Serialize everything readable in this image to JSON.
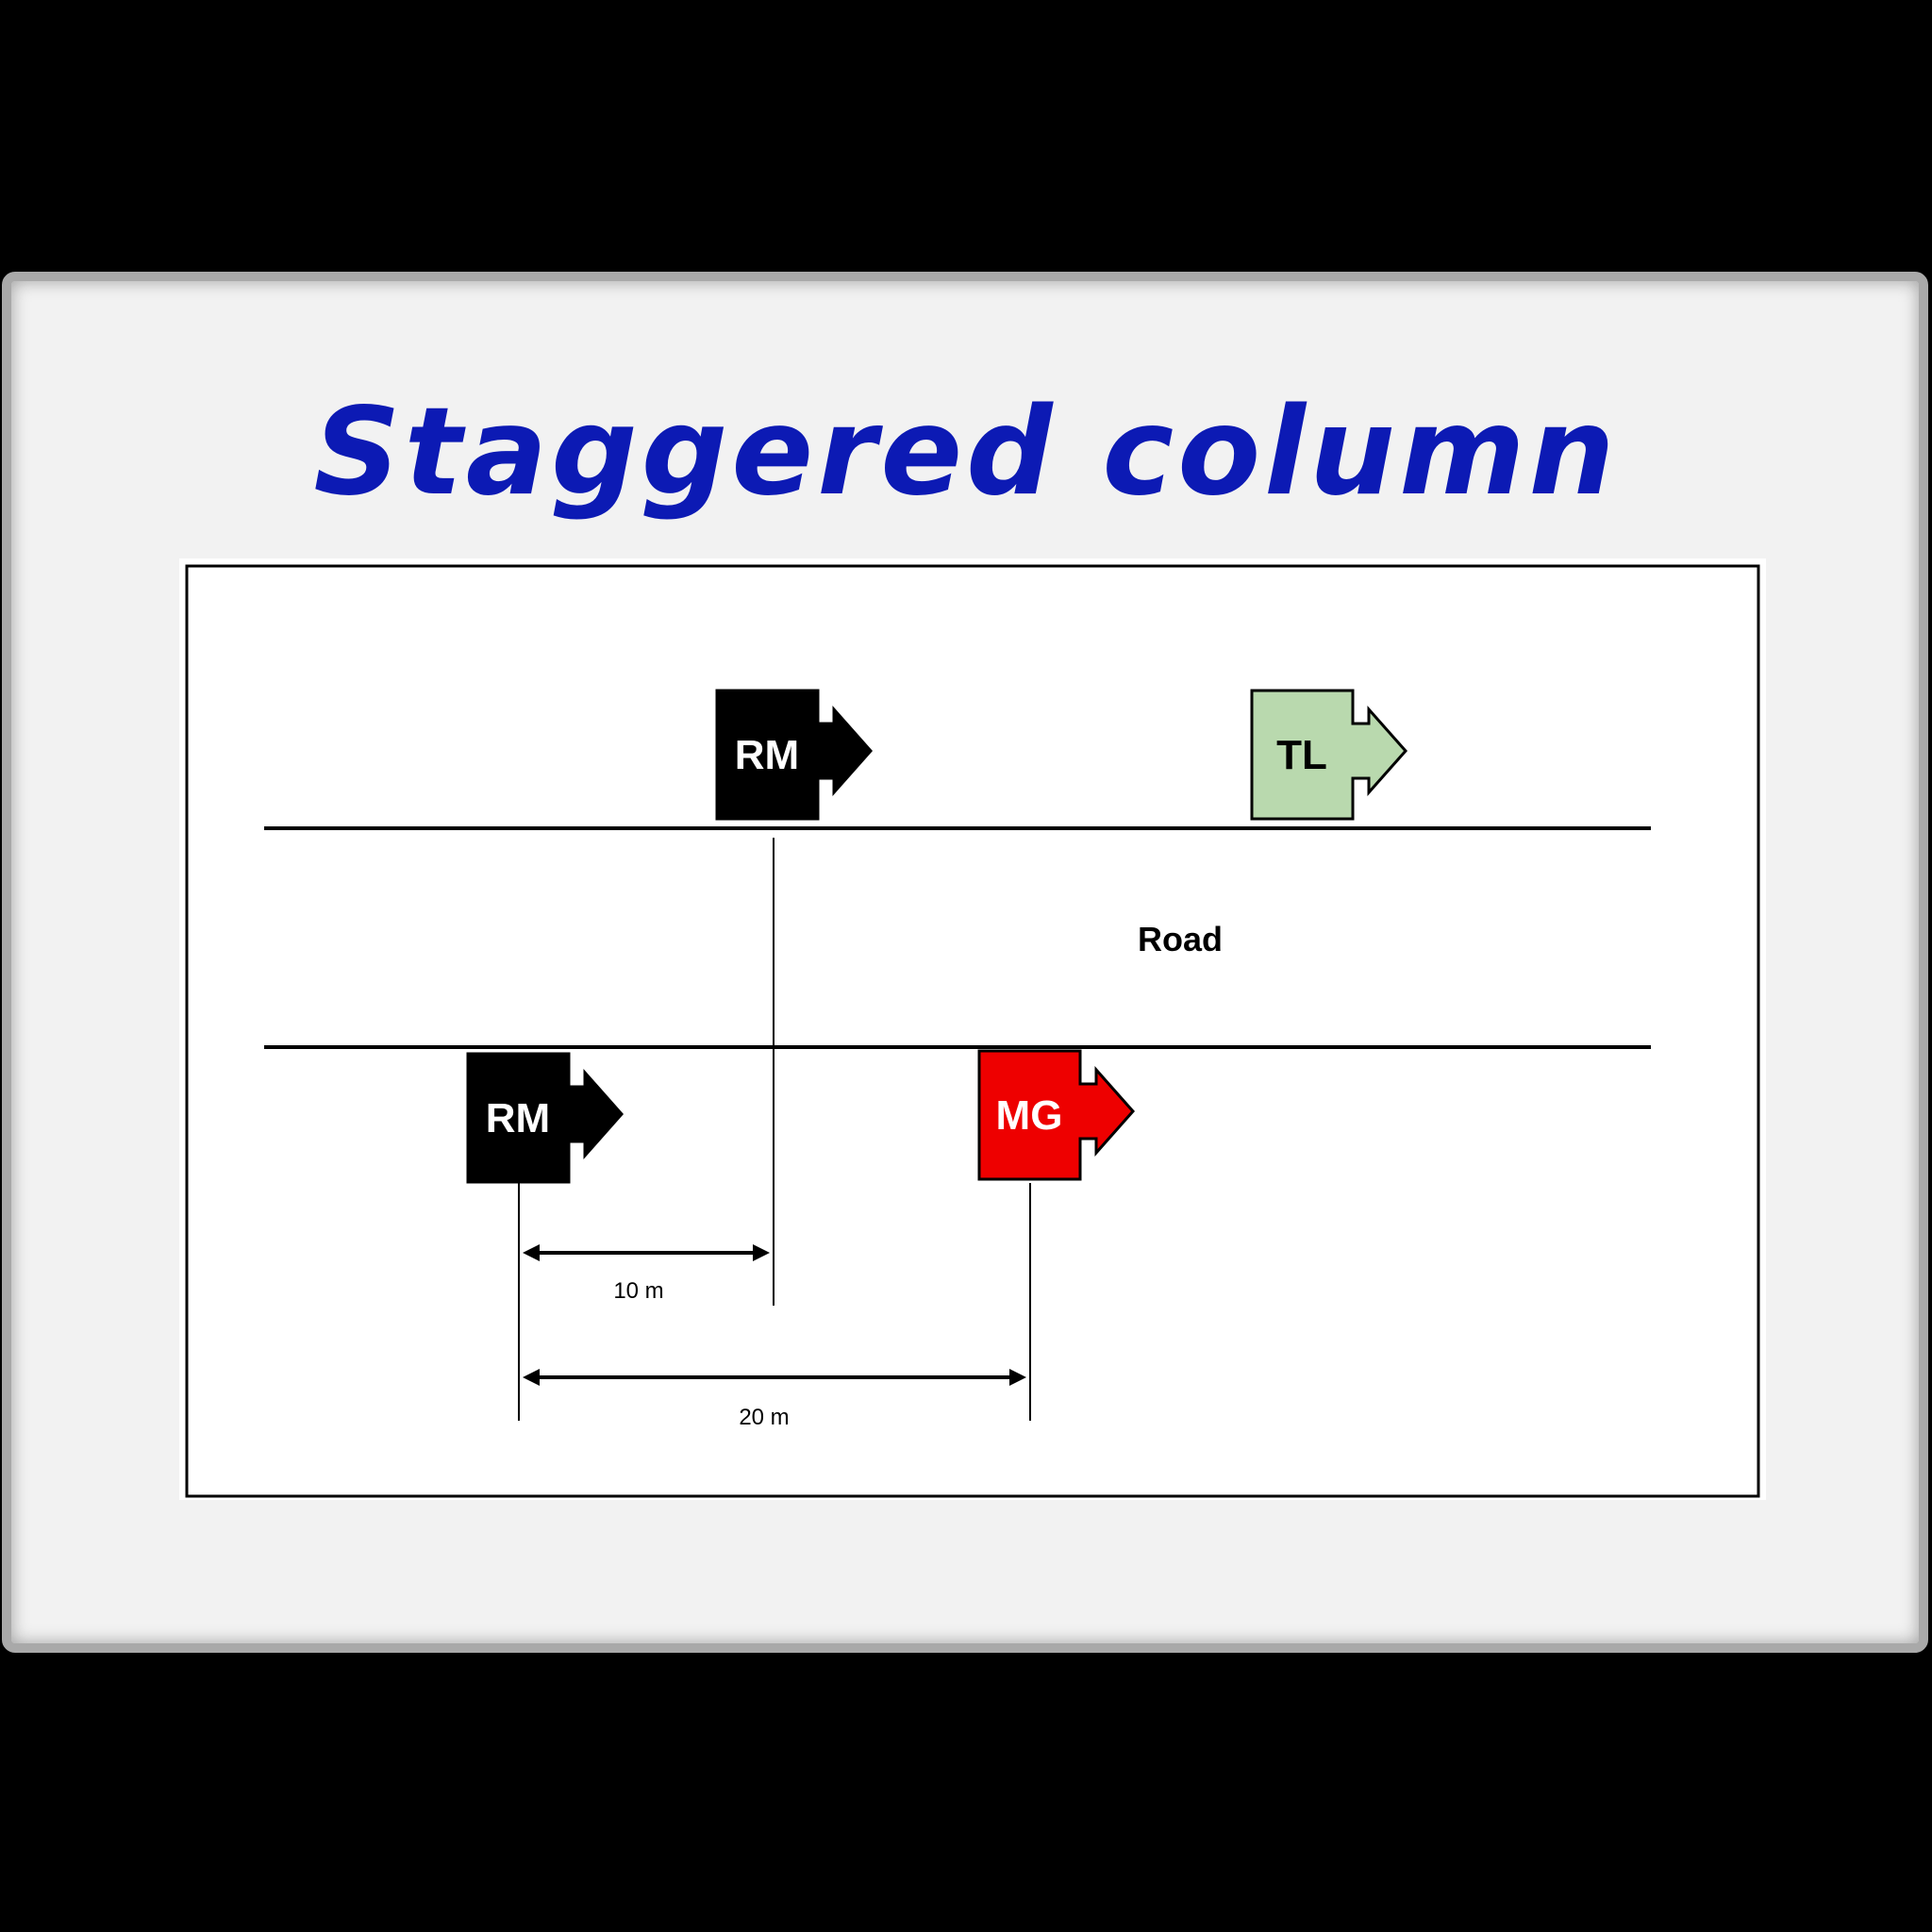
{
  "slide": {
    "title": "Staggered column"
  },
  "diagram": {
    "road_label": "Road",
    "units": [
      {
        "id": "rm-top",
        "label": "RM",
        "fill": "#000000",
        "text_color": "#ffffff"
      },
      {
        "id": "tl",
        "label": "TL",
        "fill": "#b9d9ae",
        "text_color": "#000000"
      },
      {
        "id": "rm-bottom",
        "label": "RM",
        "fill": "#000000",
        "text_color": "#ffffff"
      },
      {
        "id": "mg",
        "label": "MG",
        "fill": "#ee0000",
        "text_color": "#ffffff"
      }
    ],
    "distances": [
      {
        "id": "dist-10",
        "label": "10 m"
      },
      {
        "id": "dist-20",
        "label": "20 m"
      }
    ]
  }
}
